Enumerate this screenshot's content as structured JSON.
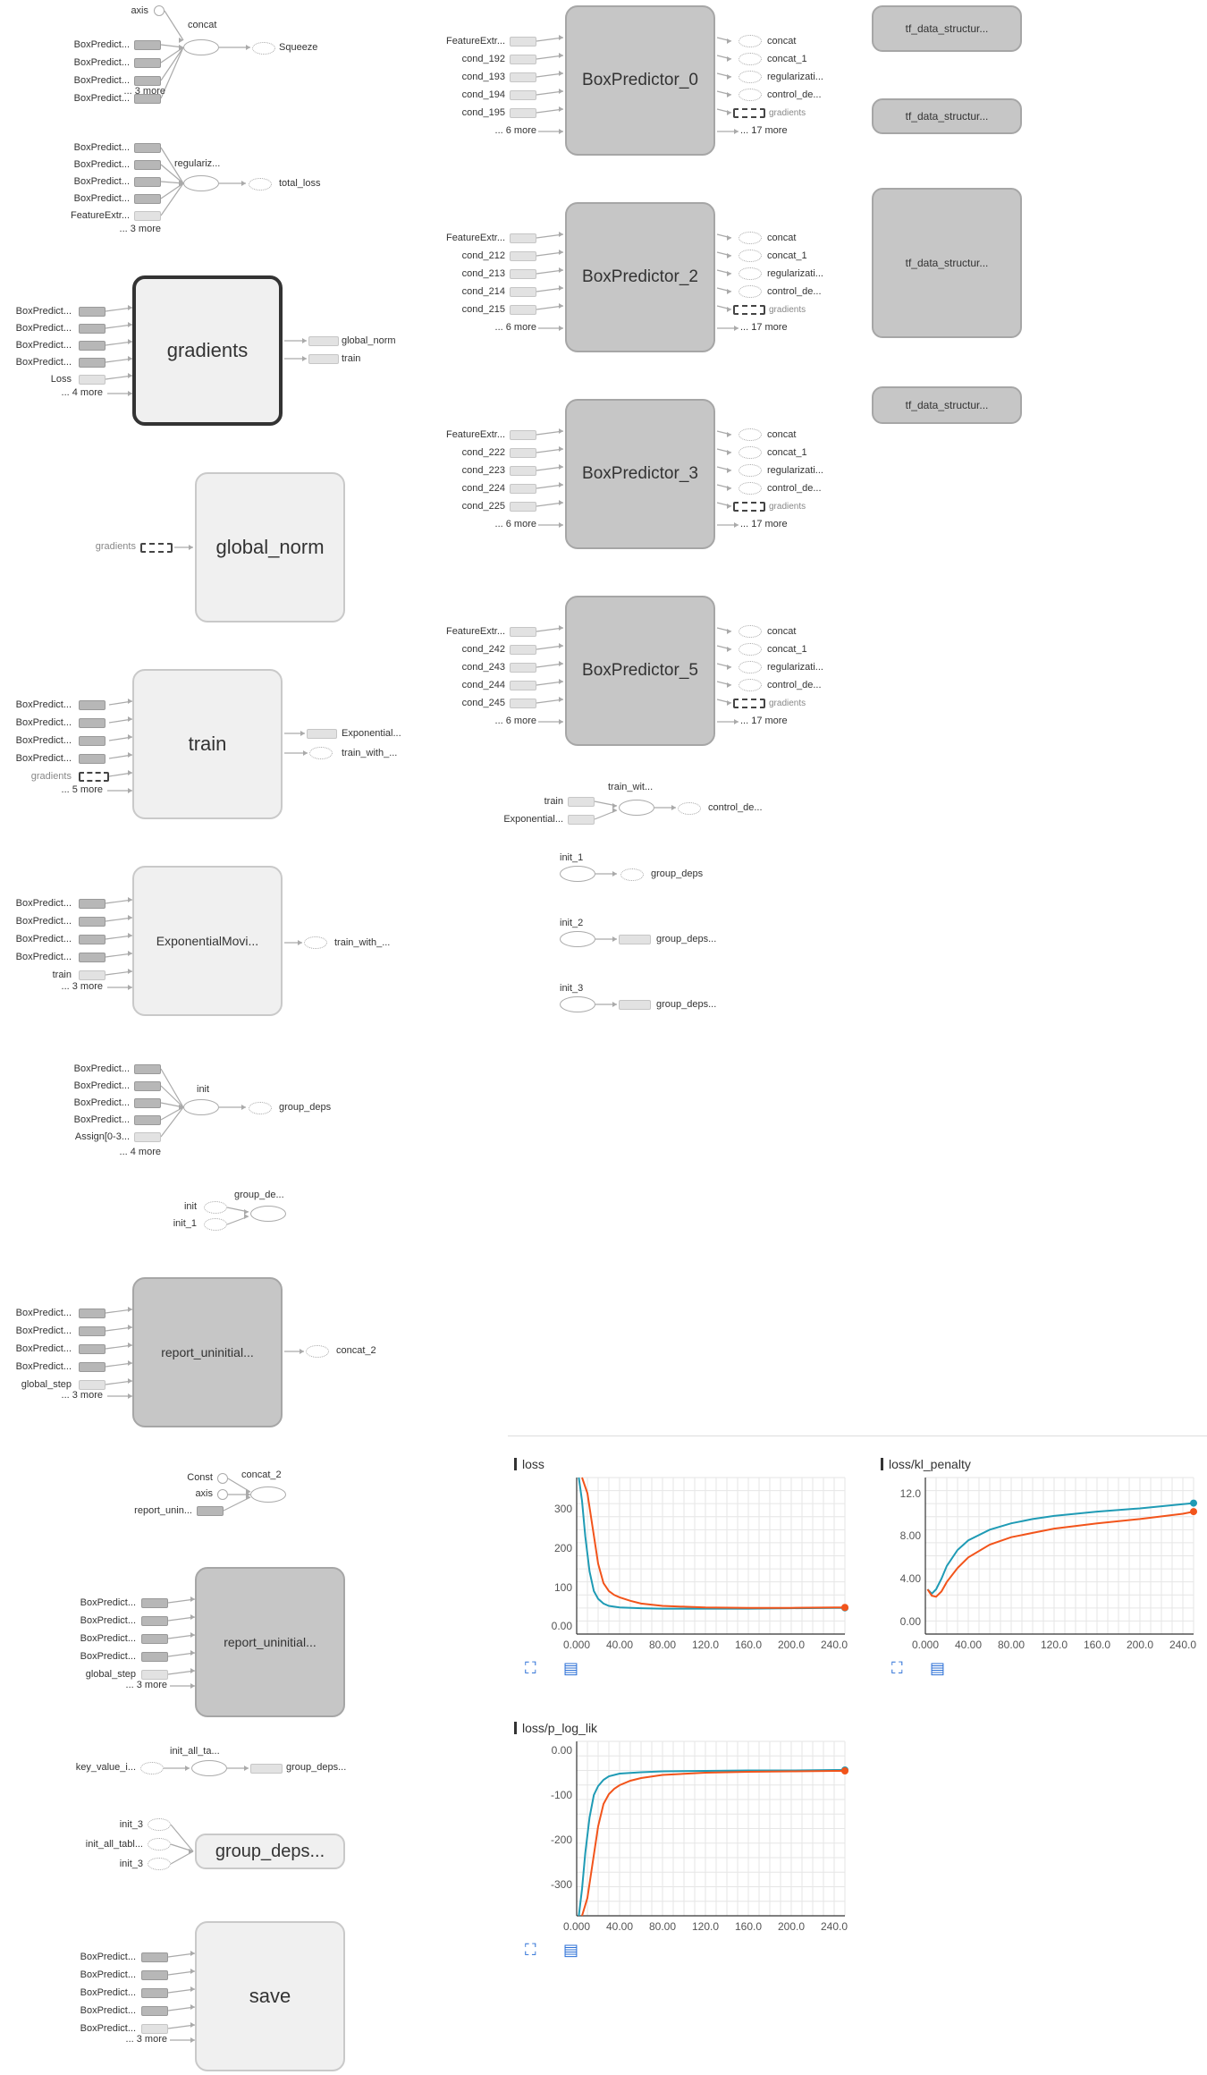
{
  "graph": {
    "concat_group": {
      "title": "concat",
      "inputs": [
        "axis",
        "BoxPredict...",
        "BoxPredict...",
        "BoxPredict...",
        "BoxPredict..."
      ],
      "more": "... 3 more",
      "output": "Squeeze"
    },
    "regularization_group": {
      "title": "regulariz...",
      "inputs": [
        "BoxPredict...",
        "BoxPredict...",
        "BoxPredict...",
        "BoxPredict...",
        "FeatureExtr..."
      ],
      "more": "... 3 more",
      "output": "total_loss"
    },
    "gradients": {
      "title": "gradients",
      "inputs": [
        "BoxPredict...",
        "BoxPredict...",
        "BoxPredict...",
        "BoxPredict...",
        "Loss"
      ],
      "more": "... 4 more",
      "outputs": [
        "global_norm",
        "train"
      ]
    },
    "global_norm": {
      "title": "global_norm",
      "input": "gradients"
    },
    "train": {
      "title": "train",
      "inputs": [
        "BoxPredict...",
        "BoxPredict...",
        "BoxPredict...",
        "BoxPredict...",
        "gradients"
      ],
      "more": "... 5 more",
      "outputs": [
        "Exponential...",
        "train_with_..."
      ]
    },
    "ema": {
      "title": "ExponentialMovi...",
      "inputs": [
        "BoxPredict...",
        "BoxPredict...",
        "BoxPredict...",
        "BoxPredict...",
        "train"
      ],
      "more": "... 3 more",
      "output": "train_with_..."
    },
    "init": {
      "title": "init",
      "inputs": [
        "BoxPredict...",
        "BoxPredict...",
        "BoxPredict...",
        "BoxPredict...",
        "Assign[0-3..."
      ],
      "more": "... 4 more",
      "output": "group_deps"
    },
    "group_de": {
      "title": "group_de...",
      "inputs": [
        "init",
        "init_1"
      ]
    },
    "report_uninit_1": {
      "title": "report_uninitial...",
      "inputs": [
        "BoxPredict...",
        "BoxPredict...",
        "BoxPredict...",
        "BoxPredict...",
        "global_step"
      ],
      "more": "... 3 more",
      "output": "concat_2"
    },
    "concat_2": {
      "title": "concat_2",
      "inputs": [
        "Const",
        "axis",
        "report_unin..."
      ]
    },
    "report_uninit_2": {
      "title": "report_uninitial...",
      "inputs": [
        "BoxPredict...",
        "BoxPredict...",
        "BoxPredict...",
        "BoxPredict...",
        "global_step"
      ],
      "more": "... 3 more"
    },
    "init_all_ta": {
      "title": "init_all_ta...",
      "input": "key_value_i...",
      "output": "group_deps..."
    },
    "group_deps_big": {
      "title": "group_deps...",
      "inputs": [
        "init_3",
        "init_all_tabl...",
        "init_3"
      ]
    },
    "save": {
      "title": "save",
      "inputs": [
        "BoxPredict...",
        "BoxPredict...",
        "BoxPredict...",
        "BoxPredict...",
        "BoxPredict..."
      ],
      "more": "... 3 more"
    },
    "box_predictors": [
      {
        "title": "BoxPredictor_0",
        "inputs": [
          "FeatureExtr...",
          "cond_192",
          "cond_193",
          "cond_194",
          "cond_195"
        ],
        "more": "... 6 more",
        "outputs": [
          "concat",
          "concat_1",
          "regularizati...",
          "control_de...",
          "gradients"
        ],
        "out_more": "... 17 more"
      },
      {
        "title": "BoxPredictor_2",
        "inputs": [
          "FeatureExtr...",
          "cond_212",
          "cond_213",
          "cond_214",
          "cond_215"
        ],
        "more": "... 6 more",
        "outputs": [
          "concat",
          "concat_1",
          "regularizati...",
          "control_de...",
          "gradients"
        ],
        "out_more": "... 17 more"
      },
      {
        "title": "BoxPredictor_3",
        "inputs": [
          "FeatureExtr...",
          "cond_222",
          "cond_223",
          "cond_224",
          "cond_225"
        ],
        "more": "... 6 more",
        "outputs": [
          "concat",
          "concat_1",
          "regularizati...",
          "control_de...",
          "gradients"
        ],
        "out_more": "... 17 more"
      },
      {
        "title": "BoxPredictor_5",
        "inputs": [
          "FeatureExtr...",
          "cond_242",
          "cond_243",
          "cond_244",
          "cond_245"
        ],
        "more": "... 6 more",
        "outputs": [
          "concat",
          "concat_1",
          "regularizati...",
          "control_de...",
          "gradients"
        ],
        "out_more": "... 17 more"
      }
    ],
    "train_wit": {
      "title": "train_wit...",
      "inputs": [
        "train",
        "Exponential..."
      ],
      "output": "control_de..."
    },
    "init_nodes": [
      {
        "title": "init_1",
        "output": "group_deps"
      },
      {
        "title": "init_2",
        "output": "group_deps..."
      },
      {
        "title": "init_3",
        "output": "group_deps..."
      }
    ],
    "tf_data": [
      "tf_data_structur...",
      "tf_data_structur...",
      "tf_data_structur...",
      "tf_data_structur..."
    ]
  },
  "chart_data": [
    {
      "type": "line",
      "title": "loss",
      "xlim": [
        0,
        250
      ],
      "ylim": [
        -20,
        380
      ],
      "x_ticks": [
        "0.000",
        "40.00",
        "80.00",
        "120.0",
        "160.0",
        "200.0",
        "240.0"
      ],
      "y_ticks": [
        "0.00",
        "100",
        "200",
        "300"
      ],
      "series": [
        {
          "color": "#1f9bb5",
          "x": [
            2,
            5,
            8,
            12,
            16,
            20,
            25,
            30,
            40,
            60,
            80,
            120,
            160,
            200,
            240,
            250
          ],
          "y": [
            380,
            320,
            230,
            140,
            90,
            70,
            58,
            52,
            48,
            46,
            45,
            45,
            45,
            46,
            47,
            47
          ]
        },
        {
          "color": "#f2541b",
          "x": [
            5,
            10,
            15,
            20,
            25,
            30,
            35,
            40,
            50,
            60,
            80,
            120,
            160,
            200,
            240,
            250
          ],
          "y": [
            380,
            340,
            250,
            160,
            110,
            90,
            80,
            74,
            65,
            58,
            52,
            48,
            47,
            47,
            48,
            48
          ]
        }
      ]
    },
    {
      "type": "line",
      "title": "loss/kl_penalty",
      "xlim": [
        0,
        250
      ],
      "ylim": [
        -1.2,
        13.5
      ],
      "x_ticks": [
        "0.000",
        "40.00",
        "80.00",
        "120.0",
        "160.0",
        "200.0",
        "240.0"
      ],
      "y_ticks": [
        "0.00",
        "4.00",
        "8.00",
        "12.0"
      ],
      "series": [
        {
          "color": "#1f9bb5",
          "x": [
            2,
            6,
            10,
            15,
            20,
            30,
            40,
            60,
            80,
            100,
            120,
            160,
            200,
            240,
            250
          ],
          "y": [
            3.0,
            2.6,
            3.0,
            4.0,
            5.2,
            6.7,
            7.6,
            8.6,
            9.2,
            9.6,
            9.9,
            10.3,
            10.6,
            11.0,
            11.1
          ]
        },
        {
          "color": "#f2541b",
          "x": [
            2,
            6,
            10,
            15,
            20,
            30,
            40,
            60,
            80,
            100,
            120,
            160,
            200,
            240,
            250
          ],
          "y": [
            3.0,
            2.4,
            2.3,
            2.8,
            3.7,
            5.0,
            6.0,
            7.2,
            7.9,
            8.3,
            8.7,
            9.2,
            9.6,
            10.1,
            10.3
          ]
        }
      ]
    },
    {
      "type": "line",
      "title": "loss/p_log_lik",
      "xlim": [
        0,
        250
      ],
      "ylim": [
        -370,
        20
      ],
      "x_ticks": [
        "0.000",
        "40.00",
        "80.00",
        "120.0",
        "160.0",
        "200.0",
        "240.0"
      ],
      "y_ticks": [
        "0.00",
        "-100",
        "-200",
        "-300"
      ],
      "series": [
        {
          "color": "#1f9bb5",
          "x": [
            2,
            5,
            8,
            12,
            16,
            20,
            25,
            30,
            40,
            60,
            80,
            120,
            160,
            200,
            240,
            250
          ],
          "y": [
            -370,
            -310,
            -230,
            -150,
            -100,
            -80,
            -66,
            -58,
            -52,
            -49,
            -47,
            -46,
            -45,
            -45,
            -44,
            -44
          ]
        },
        {
          "color": "#f2541b",
          "x": [
            5,
            10,
            15,
            20,
            25,
            30,
            35,
            40,
            50,
            60,
            80,
            120,
            160,
            200,
            240,
            250
          ],
          "y": [
            -370,
            -330,
            -250,
            -170,
            -120,
            -98,
            -86,
            -78,
            -68,
            -62,
            -55,
            -50,
            -48,
            -47,
            -46,
            -46
          ]
        }
      ]
    }
  ]
}
